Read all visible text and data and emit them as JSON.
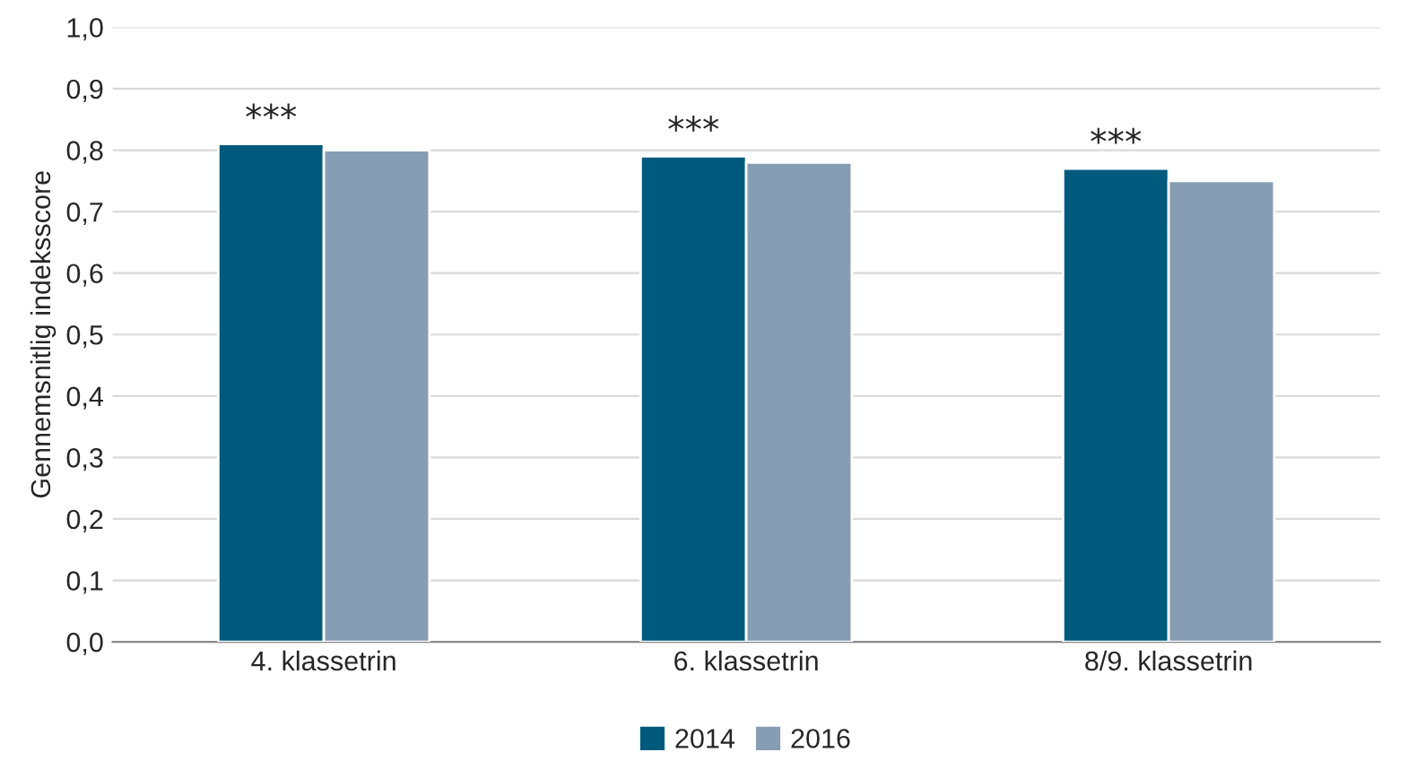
{
  "chart_data": {
    "type": "bar",
    "ylabel": "Gennemsnitlig indeksscore",
    "categories": [
      "4. klassetrin",
      "6. klassetrin",
      "8/9. klassetrin"
    ],
    "series": [
      {
        "name": "2014",
        "color": "#005a7d",
        "values": [
          0.81,
          0.79,
          0.77
        ]
      },
      {
        "name": "2016",
        "color": "#879db3",
        "values": [
          0.8,
          0.78,
          0.75
        ]
      }
    ],
    "ylim": [
      0,
      1
    ],
    "yticks": [
      {
        "value": 0,
        "label": "0,0"
      },
      {
        "value": 0.1,
        "label": "0,1"
      },
      {
        "value": 0.2,
        "label": "0,2"
      },
      {
        "value": 0.3,
        "label": "0,3"
      },
      {
        "value": 0.4,
        "label": "0,4"
      },
      {
        "value": 0.5,
        "label": "0,5"
      },
      {
        "value": 0.6,
        "label": "0,6"
      },
      {
        "value": 0.7,
        "label": "0,7"
      },
      {
        "value": 0.8,
        "label": "0,8"
      },
      {
        "value": 0.9,
        "label": "0,9"
      },
      {
        "value": 1.0,
        "label": "1,0"
      }
    ],
    "grid": "y",
    "legend": "bottom",
    "annotations": [
      "***",
      "***",
      "***"
    ]
  }
}
